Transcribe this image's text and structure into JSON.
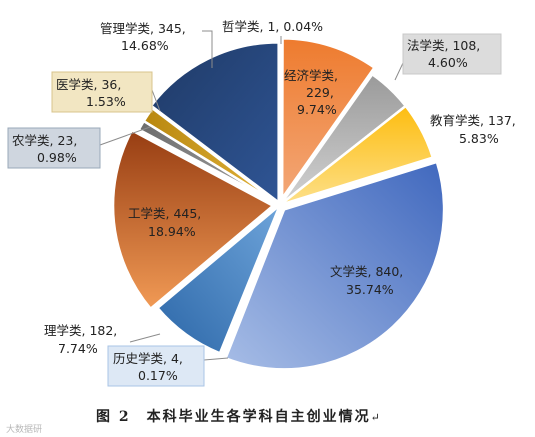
{
  "chart_data": {
    "type": "pie",
    "slices": [
      {
        "label": "哲学类",
        "value": 1,
        "pct": "0.04%",
        "color": "#2e4f86"
      },
      {
        "label": "经济学类",
        "value": 229,
        "pct": "9.74%",
        "color": "#ef7d32"
      },
      {
        "label": "法学类",
        "value": 108,
        "pct": "4.60%",
        "color": "#a9a9a9"
      },
      {
        "label": "教育学类",
        "value": 137,
        "pct": "5.83%",
        "color": "#fdc30f"
      },
      {
        "label": "文学类",
        "value": 840,
        "pct": "35.74%",
        "color": "#4472c4"
      },
      {
        "label": "历史学类",
        "value": 4,
        "pct": "0.17%",
        "color": "#2f6db0"
      },
      {
        "label": "理学类",
        "value": 182,
        "pct": "7.74%",
        "color": "#2f6db0"
      },
      {
        "label": "工学类",
        "value": 445,
        "pct": "18.94%",
        "color": "#e8782e"
      },
      {
        "label": "农学类",
        "value": 23,
        "pct": "0.98%",
        "color": "#7f7f7f"
      },
      {
        "label": "医学类",
        "value": 36,
        "pct": "1.53%",
        "color": "#c99a1a"
      },
      {
        "label": "管理学类",
        "value": 345,
        "pct": "14.68%",
        "color": "#213d6c"
      }
    ]
  },
  "caption": "图 2　本科毕业生各学科自主创业情况",
  "caption_mark": "↵",
  "watermark": "大数据研"
}
